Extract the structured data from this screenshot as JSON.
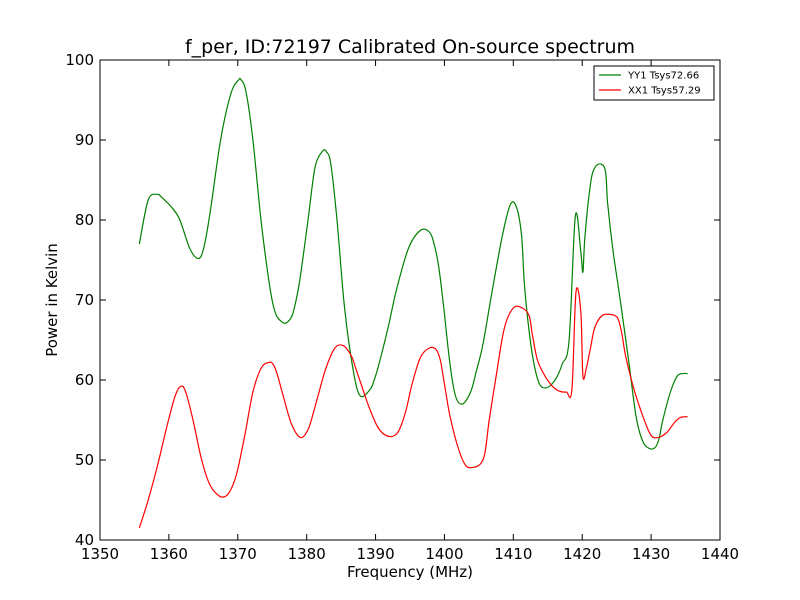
{
  "chart_data": {
    "type": "line",
    "title": "f_per, ID:72197 Calibrated On-source spectrum",
    "xlabel": "Frequency (MHz)",
    "ylabel": "Power in Kelvin",
    "xlim": [
      1350,
      1440
    ],
    "ylim": [
      40,
      100
    ],
    "xticks": [
      1350,
      1360,
      1370,
      1380,
      1390,
      1400,
      1410,
      1420,
      1430,
      1440
    ],
    "yticks": [
      40,
      50,
      60,
      70,
      80,
      90,
      100
    ],
    "grid": false,
    "legend_position": "top-right",
    "series": [
      {
        "name": "YY1 Tsys72.66",
        "color": "#008000",
        "x": [
          1355.7,
          1357,
          1358.3,
          1359,
          1360.5,
          1361.6,
          1363,
          1364.2,
          1365,
          1366,
          1367.5,
          1369,
          1370.1,
          1370.5,
          1371.2,
          1372.2,
          1373.5,
          1375.1,
          1376.5,
          1377.6,
          1378.2,
          1379,
          1380.2,
          1381.2,
          1382.3,
          1382.9,
          1383.5,
          1384.4,
          1385.5,
          1386.8,
          1387.8,
          1389.2,
          1389.8,
          1390.5,
          1391.8,
          1393.1,
          1394.8,
          1396.5,
          1397.8,
          1398.5,
          1399.2,
          1399.9,
          1400.8,
          1401.6,
          1402.6,
          1403.8,
          1404.6,
          1405.6,
          1406.8,
          1408.4,
          1409.6,
          1410.5,
          1411.2,
          1411.6,
          1412.3,
          1413,
          1413.8,
          1414.7,
          1415.6,
          1416.4,
          1417.1,
          1418.1,
          1419,
          1419.8,
          1420.1,
          1420.4,
          1421.2,
          1421.8,
          1422.7,
          1423.4,
          1423.7,
          1424.5,
          1425.6,
          1426.8,
          1427.8,
          1428.7,
          1429.6,
          1430.5,
          1431.1,
          1431.7,
          1432.8,
          1433.8,
          1434.7,
          1435.3
        ],
        "y": [
          77,
          82.5,
          83.2,
          82.8,
          81.5,
          80,
          76.5,
          75.2,
          76.3,
          81,
          90,
          95.8,
          97.5,
          97.5,
          96,
          90,
          79,
          69.5,
          67.2,
          67.6,
          69,
          72.5,
          80,
          86.5,
          88.6,
          88.5,
          87,
          80,
          69,
          61,
          58,
          58.8,
          60,
          62,
          66.5,
          71.5,
          76.5,
          78.7,
          78.5,
          77,
          74,
          69,
          62,
          58,
          57,
          58.5,
          61,
          64.5,
          70.5,
          78,
          82,
          81.5,
          78,
          72,
          66,
          62,
          59.5,
          59,
          59.5,
          60.5,
          62,
          65,
          80.5,
          76,
          73.5,
          78,
          84.5,
          86.5,
          87,
          86,
          82,
          76,
          69.5,
          62,
          55.5,
          52.5,
          51.5,
          51.5,
          52.5,
          55,
          58.5,
          60.5,
          60.8,
          60.8
        ]
      },
      {
        "name": "XX1 Tsys57.29",
        "color": "#ff0000",
        "x": [
          1355.7,
          1357,
          1358.4,
          1359.8,
          1360.9,
          1361.7,
          1362.4,
          1363.5,
          1364.7,
          1365.9,
          1367.3,
          1368.3,
          1369.1,
          1369.9,
          1371,
          1372.2,
          1373.4,
          1374.5,
          1375.1,
          1375.7,
          1376.6,
          1377.8,
          1379.1,
          1380.2,
          1381,
          1381.8,
          1382.8,
          1384.1,
          1385.3,
          1386.5,
          1387.1,
          1387.9,
          1389.1,
          1390.4,
          1391.7,
          1393,
          1393.8,
          1394.5,
          1395.3,
          1396.5,
          1397.8,
          1398.8,
          1399.4,
          1399.9,
          1400.8,
          1402,
          1403.1,
          1404.3,
          1405.3,
          1405.9,
          1406.5,
          1407.6,
          1408.7,
          1410,
          1411.3,
          1412.3,
          1412.8,
          1413.5,
          1414.6,
          1415.7,
          1416.7,
          1417.7,
          1418.5,
          1419.1,
          1419.8,
          1420.1,
          1420.6,
          1421.2,
          1421.8,
          1422.8,
          1424,
          1425.1,
          1425.7,
          1426.3,
          1427.3,
          1428.5,
          1429.9,
          1431,
          1432.1,
          1432.8,
          1433.5,
          1434.2,
          1434.8,
          1435.3
        ],
        "y": [
          41.5,
          45,
          49.5,
          54.5,
          58,
          59.2,
          58.6,
          55,
          50.2,
          47,
          45.5,
          45.5,
          46.5,
          48.5,
          53,
          58.5,
          61.5,
          62.2,
          62,
          60.8,
          58,
          54.5,
          52.8,
          53.8,
          56,
          58.5,
          61.5,
          64,
          64.3,
          63,
          61.5,
          59.5,
          56.5,
          54,
          53,
          53.2,
          54.5,
          56.5,
          59.5,
          62.8,
          64,
          63.8,
          62.5,
          60,
          55.5,
          51.5,
          49.3,
          49.1,
          49.6,
          51,
          55,
          61,
          66.5,
          69,
          69,
          68,
          65.5,
          62.5,
          60.5,
          59.2,
          58.6,
          58.5,
          58.8,
          71,
          68.5,
          60.5,
          61.5,
          64,
          66.5,
          68,
          68.2,
          67.8,
          66,
          63,
          59.5,
          56.2,
          53.2,
          52.8,
          53.3,
          54,
          54.8,
          55.3,
          55.4,
          55.4
        ]
      }
    ]
  }
}
